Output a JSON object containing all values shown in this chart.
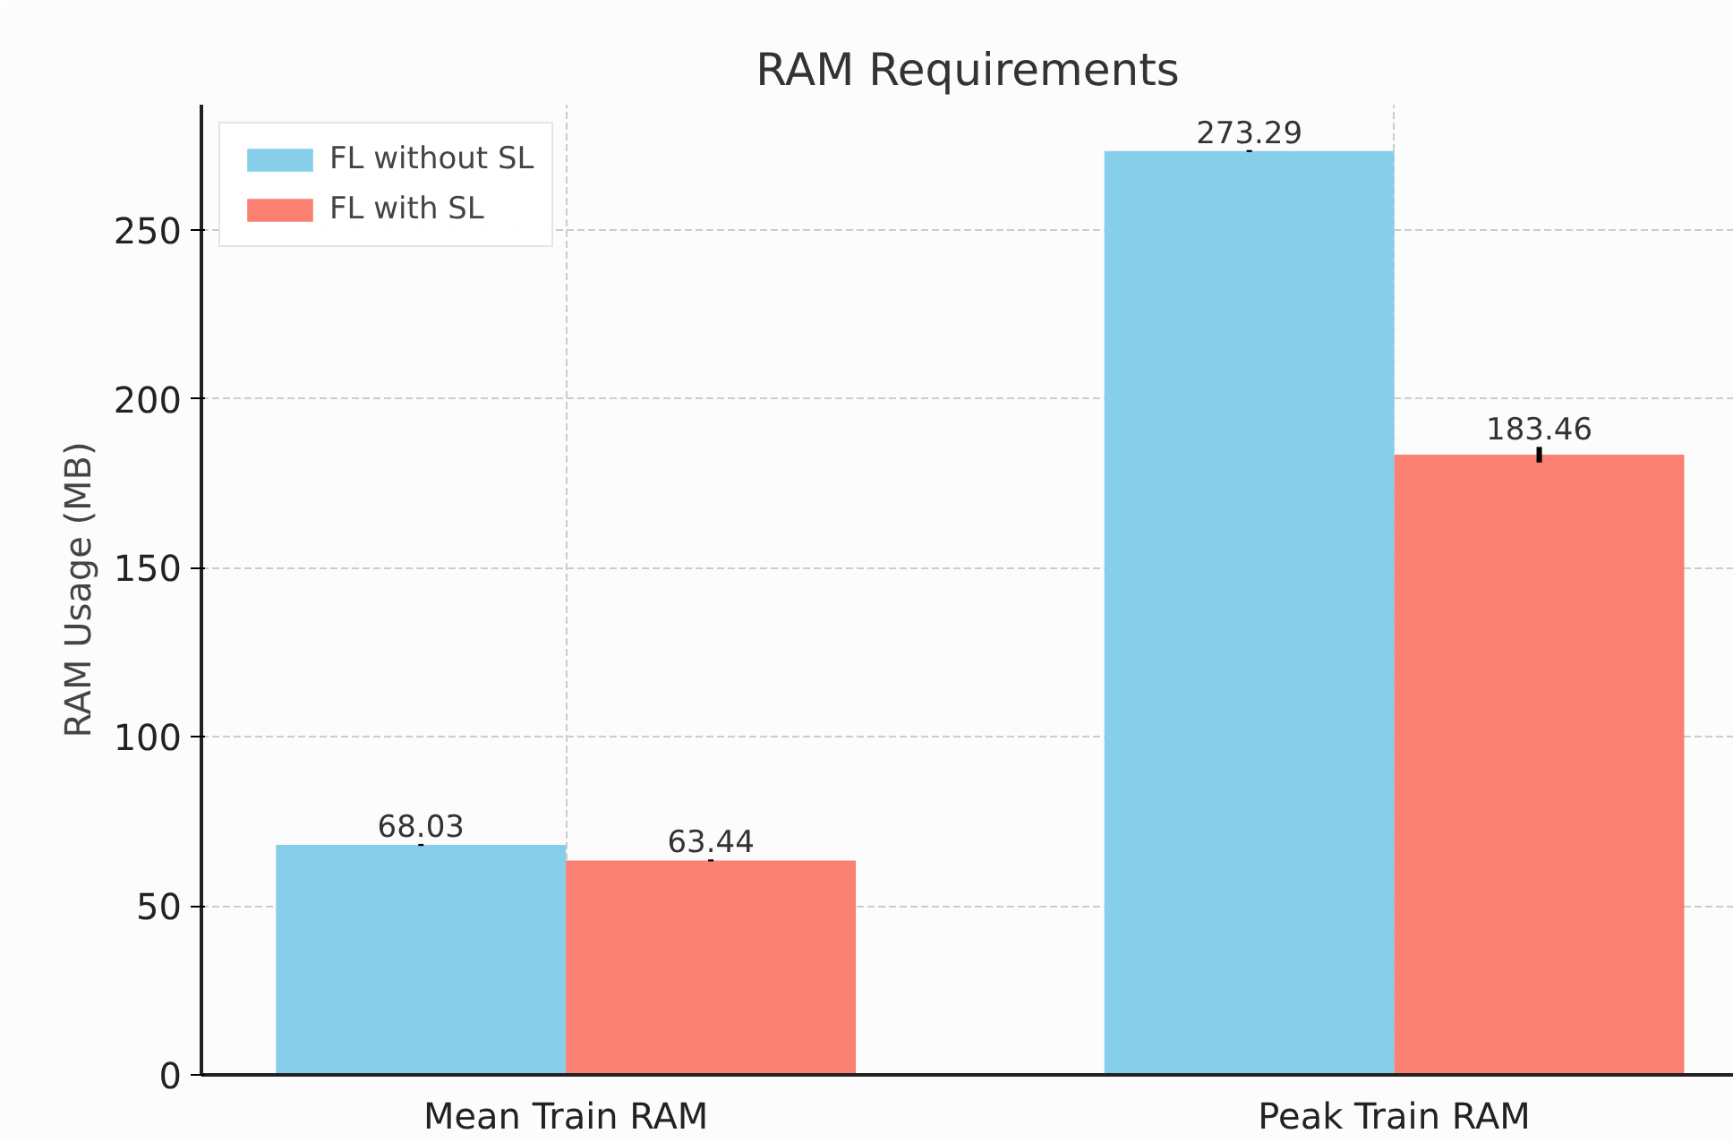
{
  "chart_data": {
    "type": "bar",
    "title": "RAM Requirements",
    "ylabel": "RAM Usage (MB)",
    "categories": [
      "Mean Train RAM",
      "Peak Train RAM"
    ],
    "series": [
      {
        "name": "FL without SL",
        "color": "#87ceeb",
        "values": [
          68.03,
          273.29
        ],
        "errors": [
          0.3,
          0.3
        ]
      },
      {
        "name": "FL with SL",
        "color": "#fa8072",
        "values": [
          63.44,
          183.46
        ],
        "errors": [
          0.3,
          2.3
        ]
      }
    ],
    "ylim": [
      0,
      287
    ],
    "yticks": [
      0,
      50,
      100,
      150,
      200,
      250
    ],
    "grid": true,
    "legend": "top left",
    "data_labels": true
  }
}
